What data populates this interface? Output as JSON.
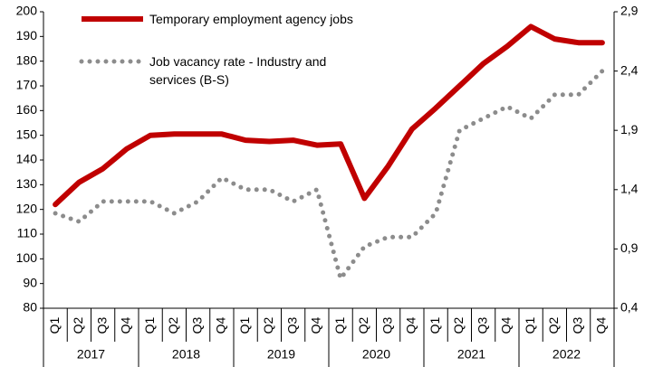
{
  "chart_data": {
    "type": "line",
    "categories": [
      "Q1",
      "Q2",
      "Q3",
      "Q4",
      "Q1",
      "Q2",
      "Q3",
      "Q4",
      "Q1",
      "Q2",
      "Q3",
      "Q4",
      "Q1",
      "Q2",
      "Q3",
      "Q4",
      "Q1",
      "Q2",
      "Q3",
      "Q4",
      "Q1",
      "Q2",
      "Q3",
      "Q4"
    ],
    "years": [
      "2017",
      "2018",
      "2019",
      "2020",
      "2021",
      "2022"
    ],
    "series": [
      {
        "name": "Temporary employment agency jobs",
        "color": "#c00000",
        "style": "solid",
        "values": [
          122,
          131,
          136.5,
          144.5,
          150,
          150.5,
          150.5,
          150.5,
          148,
          147.5,
          148,
          146,
          146.5,
          124.5,
          137.5,
          152.5,
          161,
          170,
          179,
          186,
          194,
          189,
          187.5,
          187.5
        ]
      },
      {
        "name": "Job vacancy rate - Industry and services (B-S)",
        "color": "#8c8c8c",
        "style": "dotted",
        "axis": "y2",
        "values": [
          1.2,
          1.13,
          1.3,
          1.3,
          1.3,
          1.2,
          1.3,
          1.5,
          1.4,
          1.4,
          1.3,
          1.4,
          0.65,
          0.92,
          1.0,
          1.0,
          1.2,
          1.9,
          2.0,
          2.1,
          2.0,
          2.2,
          2.2,
          2.4
        ]
      }
    ],
    "ylim": [
      80,
      200
    ],
    "yticks": [
      80,
      90,
      100,
      110,
      120,
      130,
      140,
      150,
      160,
      170,
      180,
      190,
      200
    ],
    "y2lim": [
      0.4,
      2.9
    ],
    "y2ticks": [
      {
        "value": 0.4,
        "label": "0,4"
      },
      {
        "value": 0.9,
        "label": "0,9"
      },
      {
        "value": 1.4,
        "label": "1,4"
      },
      {
        "value": 1.9,
        "label": "1,9"
      },
      {
        "value": 2.4,
        "label": "2,4"
      },
      {
        "value": 2.9,
        "label": "2,9"
      }
    ],
    "legend": "top-left"
  }
}
